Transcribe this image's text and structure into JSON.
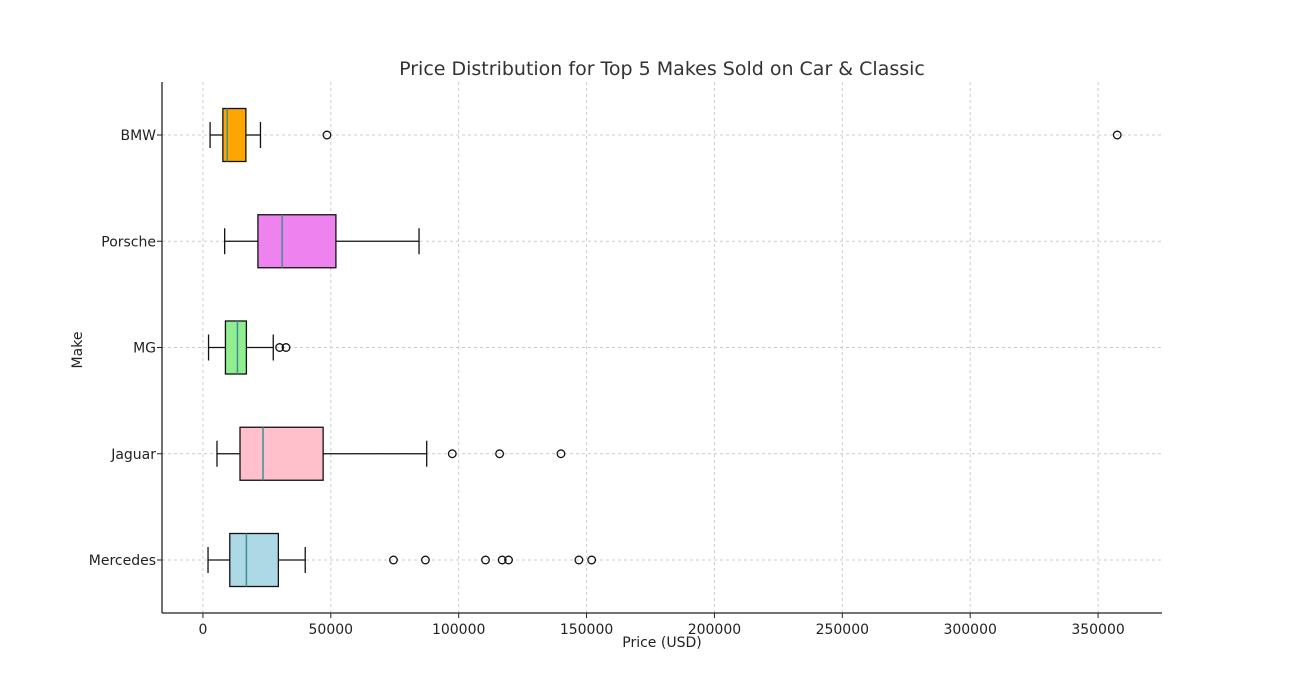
{
  "chart_data": {
    "type": "boxplot",
    "orientation": "horizontal",
    "title": "Price Distribution for Top 5 Makes Sold on Car & Classic",
    "xlabel": "Price (USD)",
    "ylabel": "Make",
    "xlim": [
      -16000,
      375000
    ],
    "x_ticks": [
      0,
      50000,
      100000,
      150000,
      200000,
      250000,
      300000,
      350000
    ],
    "x_tick_labels": [
      "0",
      "50000",
      "100000",
      "150000",
      "200000",
      "250000",
      "300000",
      "350000"
    ],
    "grid": true,
    "categories": [
      "BMW",
      "Porsche",
      "MG",
      "Jaguar",
      "Mercedes"
    ],
    "series": [
      {
        "name": "BMW",
        "color": "#ffa500",
        "whisker_low": 2800,
        "q1": 7800,
        "median": 9500,
        "q3": 16800,
        "whisker_high": 22500,
        "fliers": [
          48500,
          357500
        ]
      },
      {
        "name": "Porsche",
        "color": "#ee82ee",
        "whisker_low": 8500,
        "q1": 21500,
        "median": 31000,
        "q3": 52000,
        "whisker_high": 84500,
        "fliers": []
      },
      {
        "name": "MG",
        "color": "#90ee90",
        "whisker_low": 2200,
        "q1": 8800,
        "median": 13500,
        "q3": 17000,
        "whisker_high": 27500,
        "fliers": [
          30000,
          32500
        ]
      },
      {
        "name": "Jaguar",
        "color": "#ffc0cb",
        "whisker_low": 5500,
        "q1": 14500,
        "median": 23500,
        "q3": 47000,
        "whisker_high": 87500,
        "fliers": [
          97500,
          116000,
          140000
        ]
      },
      {
        "name": "Mercedes",
        "color": "#add8e6",
        "whisker_low": 2000,
        "q1": 10500,
        "median": 17000,
        "q3": 29500,
        "whisker_high": 40000,
        "fliers": [
          74500,
          87000,
          110500,
          117000,
          119500,
          147000,
          152000
        ]
      }
    ]
  }
}
